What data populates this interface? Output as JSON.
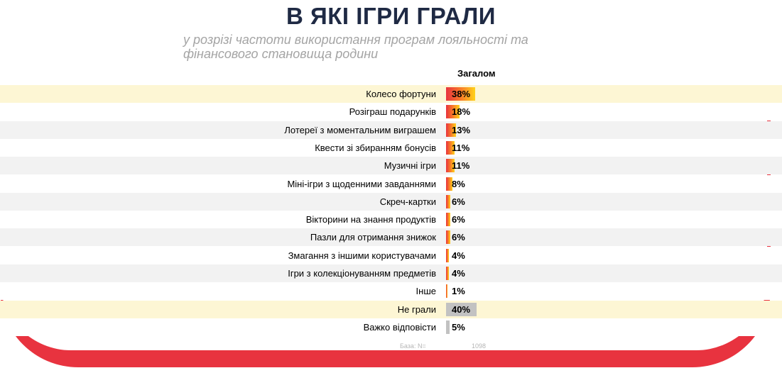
{
  "header": {
    "title": "В ЯКІ ІГРИ ГРАЛИ",
    "subtitle_line1": "у розрізі частоти використання програм лояльності та",
    "subtitle_line2": "фінансового становища родини"
  },
  "chart_data": {
    "type": "bar",
    "orientation": "horizontal",
    "series": [
      {
        "name": "Загалом",
        "values": [
          38,
          18,
          13,
          11,
          11,
          8,
          6,
          6,
          6,
          4,
          4,
          1,
          40,
          5
        ],
        "value_labels": [
          "38%",
          "18%",
          "13%",
          "11%",
          "11%",
          "8%",
          "6%",
          "6%",
          "6%",
          "4%",
          "4%",
          "1%",
          "40%",
          "5%"
        ]
      }
    ],
    "categories": [
      "Колесо фортуни",
      "Розіграш подарунків",
      "Лотереї з моментальним виграшем",
      "Квести зі збиранням бонусів",
      "Музичні ігри",
      "Міні-ігри з щоденними завданнями",
      "Скреч-картки",
      "Вікторини на знання продуктів",
      "Пазли для отримання знижок",
      "Змагання з іншими користувачами",
      "Ігри з колекціонуванням предметів",
      "Інше",
      "Не грали",
      "Важко відповісти"
    ],
    "row_colors": [
      "#fdf6d4",
      "#ffffff",
      "#f2f2f2",
      "#ffffff",
      "#f2f2f2",
      "#ffffff",
      "#f2f2f2",
      "#ffffff",
      "#f2f2f2",
      "#ffffff",
      "#f2f2f2",
      "#ffffff",
      "#fdf6d4",
      "#ffffff"
    ],
    "bar_style": [
      "games",
      "games",
      "games",
      "games",
      "games",
      "games",
      "games",
      "games",
      "games",
      "games",
      "games",
      "games",
      "grey",
      "grey"
    ],
    "xlim": [
      0,
      100
    ],
    "base_label": "База: N=",
    "base_value": "1098"
  },
  "colors": {
    "accent_red": "#e8333f",
    "gradient_orange": "#f7722a",
    "gradient_yellow": "#ffd21a",
    "grey_bar": "#c2c2c2",
    "title_color": "#1f2a44"
  }
}
